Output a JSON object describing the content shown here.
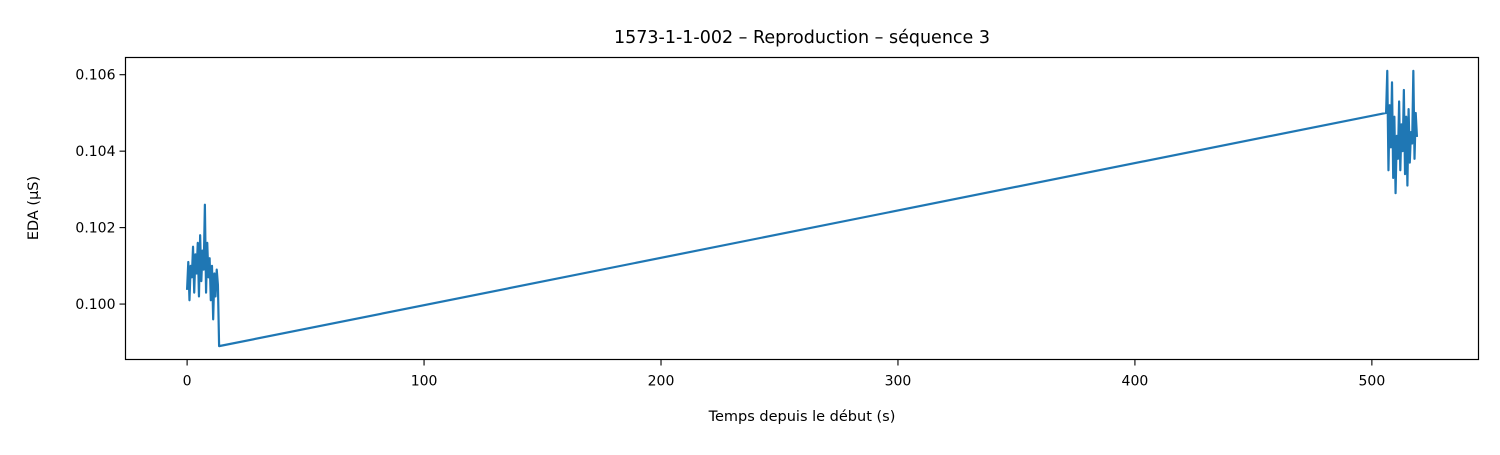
{
  "chart_data": {
    "type": "line",
    "title": "1573-1-1-002 – Reproduction – séquence 3",
    "xlabel": "Temps depuis le début (s)",
    "ylabel": "EDA (µS)",
    "xlim": [
      -26,
      545
    ],
    "ylim": [
      0.09855,
      0.10645
    ],
    "xticks": [
      0,
      100,
      200,
      300,
      400,
      500
    ],
    "xtick_labels": [
      "0",
      "100",
      "200",
      "300",
      "400",
      "500"
    ],
    "yticks": [
      0.1,
      0.102,
      0.104,
      0.106
    ],
    "ytick_labels": [
      "0.100",
      "0.102",
      "0.104",
      "0.106"
    ],
    "grid": false,
    "legend": "none",
    "series": [
      {
        "color": "#1f77b4",
        "x": [
          0.0,
          0.5,
          1.0,
          1.5,
          2.0,
          2.5,
          3.0,
          3.5,
          4.0,
          4.5,
          5.0,
          5.5,
          6.0,
          6.5,
          7.0,
          7.5,
          8.0,
          8.5,
          9.0,
          9.5,
          10.0,
          10.5,
          11.0,
          11.5,
          12.0,
          12.5,
          13.0,
          13.5,
          506.0,
          506.5,
          507.0,
          507.5,
          508.0,
          508.5,
          509.0,
          509.5,
          510.0,
          510.5,
          511.0,
          511.5,
          512.0,
          512.5,
          513.0,
          513.5,
          514.0,
          514.5,
          515.0,
          515.5,
          516.0,
          516.5,
          517.0,
          517.5,
          518.0,
          518.5,
          519.0
        ],
        "y": [
          0.1004,
          0.1011,
          0.1001,
          0.101,
          0.1007,
          0.1015,
          0.1003,
          0.1013,
          0.1008,
          0.1016,
          0.1002,
          0.1018,
          0.1006,
          0.1014,
          0.1009,
          0.1026,
          0.1003,
          0.1016,
          0.1007,
          0.1012,
          0.1001,
          0.101,
          0.0996,
          0.1008,
          0.1002,
          0.1009,
          0.1005,
          0.0989,
          0.105,
          0.1061,
          0.1035,
          0.1052,
          0.1041,
          0.1058,
          0.1033,
          0.1049,
          0.1029,
          0.1044,
          0.1038,
          0.1053,
          0.1035,
          0.1047,
          0.104,
          0.1056,
          0.1034,
          0.1049,
          0.1031,
          0.1051,
          0.1037,
          0.1045,
          0.1042,
          0.1061,
          0.1038,
          0.105,
          0.1044
        ]
      }
    ]
  }
}
